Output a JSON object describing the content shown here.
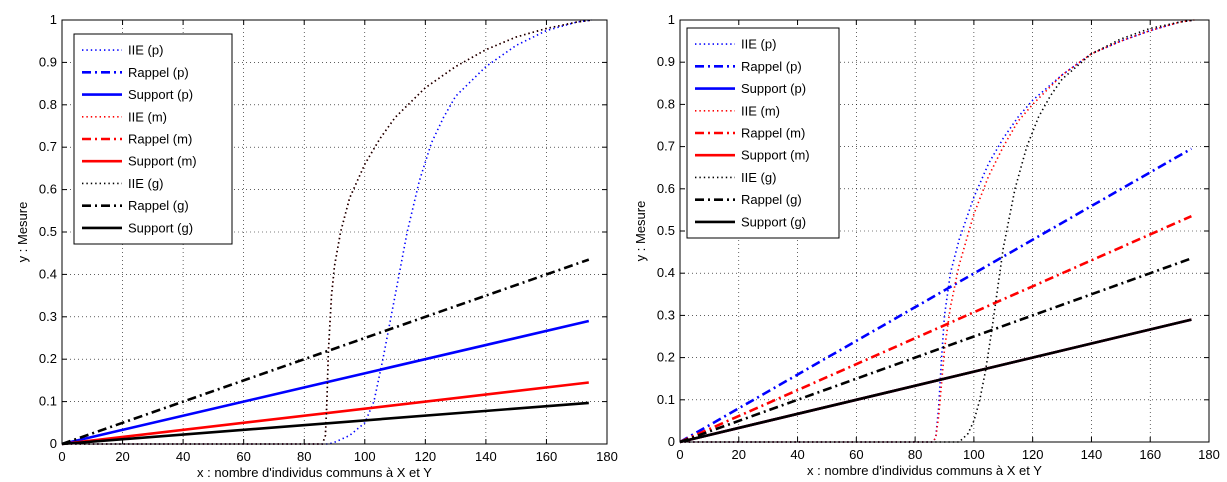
{
  "chart_data": [
    {
      "type": "line",
      "title": "",
      "xlabel": "x : nombre d'individus communs à X et Y",
      "ylabel": "y : Mesure",
      "xlim": [
        0,
        180
      ],
      "ylim": [
        0,
        1
      ],
      "xticks": [
        0,
        20,
        40,
        60,
        80,
        100,
        120,
        140,
        160,
        180
      ],
      "yticks": [
        0,
        0.1,
        0.2,
        0.3,
        0.4,
        0.5,
        0.6,
        0.7,
        0.8,
        0.9,
        1
      ],
      "grid": true,
      "legend_position": "top-left",
      "series": [
        {
          "name": "IIE (p)",
          "color": "#0000ff",
          "style": "dotted",
          "x": [
            0,
            86,
            88,
            90,
            95,
            100,
            103,
            106,
            110,
            114,
            118,
            122,
            126,
            130,
            140,
            150,
            160,
            170,
            175
          ],
          "y": [
            0,
            0,
            0,
            0.004,
            0.02,
            0.05,
            0.1,
            0.2,
            0.35,
            0.5,
            0.62,
            0.71,
            0.77,
            0.82,
            0.89,
            0.94,
            0.975,
            0.995,
            1
          ]
        },
        {
          "name": "Rappel (p)",
          "color": "#0000ff",
          "style": "dashdot",
          "x": [
            0,
            174
          ],
          "y": [
            0,
            0.0
          ]
        },
        {
          "name": "Support (p)",
          "color": "#0000ff",
          "style": "solid",
          "x": [
            0,
            174
          ],
          "y": [
            0,
            0.29
          ]
        },
        {
          "name": "IIE (m)",
          "color": "#ff0000",
          "style": "dotted",
          "x": [
            0,
            86,
            87,
            87.5,
            88,
            89,
            90,
            92,
            95,
            100,
            105,
            110,
            120,
            130,
            140,
            150,
            160,
            170,
            175
          ],
          "y": [
            0,
            0,
            0.02,
            0.1,
            0.22,
            0.35,
            0.42,
            0.5,
            0.58,
            0.66,
            0.72,
            0.77,
            0.84,
            0.89,
            0.93,
            0.96,
            0.98,
            0.995,
            1
          ]
        },
        {
          "name": "Rappel (m)",
          "color": "#ff0000",
          "style": "dashdot",
          "x": [
            0,
            174
          ],
          "y": [
            0,
            0.0
          ]
        },
        {
          "name": "Support (m)",
          "color": "#ff0000",
          "style": "solid",
          "x": [
            0,
            174
          ],
          "y": [
            0,
            0.145
          ]
        },
        {
          "name": "IIE (g)",
          "color": "#000000",
          "style": "dotted",
          "x": [
            0,
            86,
            87,
            87.5,
            88,
            89,
            90,
            92,
            95,
            100,
            105,
            110,
            120,
            130,
            140,
            150,
            160,
            170,
            175
          ],
          "y": [
            0,
            0,
            0.02,
            0.1,
            0.22,
            0.35,
            0.42,
            0.5,
            0.58,
            0.66,
            0.72,
            0.77,
            0.84,
            0.89,
            0.93,
            0.96,
            0.98,
            0.995,
            1
          ]
        },
        {
          "name": "Rappel (g)",
          "color": "#000000",
          "style": "dashdot",
          "x": [
            0,
            174
          ],
          "y": [
            0,
            0.435
          ]
        },
        {
          "name": "Support (g)",
          "color": "#000000",
          "style": "solid",
          "x": [
            0,
            174
          ],
          "y": [
            0,
            0.097
          ]
        }
      ]
    },
    {
      "type": "line",
      "title": "",
      "xlabel": "x : nombre d'individus communs à X et Y",
      "ylabel": "y : Mesure",
      "xlim": [
        0,
        180
      ],
      "ylim": [
        0,
        1
      ],
      "xticks": [
        0,
        20,
        40,
        60,
        80,
        100,
        120,
        140,
        160,
        180
      ],
      "yticks": [
        0,
        0.1,
        0.2,
        0.3,
        0.4,
        0.5,
        0.6,
        0.7,
        0.8,
        0.9,
        1
      ],
      "grid": true,
      "legend_position": "top-left",
      "series": [
        {
          "name": "IIE (p)",
          "color": "#0000ff",
          "style": "dotted",
          "x": [
            0,
            86,
            87,
            88,
            89,
            90,
            92,
            95,
            100,
            105,
            110,
            115,
            120,
            130,
            140,
            150,
            160,
            170,
            175
          ],
          "y": [
            0,
            0,
            0.01,
            0.08,
            0.2,
            0.3,
            0.4,
            0.48,
            0.58,
            0.66,
            0.72,
            0.77,
            0.81,
            0.87,
            0.92,
            0.95,
            0.975,
            0.995,
            1
          ]
        },
        {
          "name": "Rappel (p)",
          "color": "#0000ff",
          "style": "dashdot",
          "x": [
            0,
            174
          ],
          "y": [
            0,
            0.695
          ]
        },
        {
          "name": "Support (p)",
          "color": "#0000ff",
          "style": "solid",
          "x": [
            0,
            174
          ],
          "y": [
            0,
            0.29
          ]
        },
        {
          "name": "IIE (m)",
          "color": "#ff0000",
          "style": "dotted",
          "x": [
            0,
            86,
            87,
            88,
            89,
            90,
            92,
            95,
            100,
            105,
            110,
            115,
            120,
            130,
            140,
            150,
            160,
            170,
            175
          ],
          "y": [
            0,
            0,
            0.01,
            0.06,
            0.14,
            0.22,
            0.32,
            0.42,
            0.54,
            0.63,
            0.7,
            0.76,
            0.8,
            0.87,
            0.92,
            0.95,
            0.975,
            0.995,
            1
          ]
        },
        {
          "name": "Rappel (m)",
          "color": "#ff0000",
          "style": "dashdot",
          "x": [
            0,
            174
          ],
          "y": [
            0,
            0.535
          ]
        },
        {
          "name": "Support (m)",
          "color": "#ff0000",
          "style": "solid",
          "x": [
            0,
            174
          ],
          "y": [
            0,
            0.29
          ]
        },
        {
          "name": "IIE (g)",
          "color": "#000000",
          "style": "dotted",
          "x": [
            0,
            95,
            98,
            100,
            102,
            104,
            106,
            108,
            110,
            114,
            118,
            122,
            126,
            130,
            140,
            150,
            160,
            170,
            175
          ],
          "y": [
            0,
            0,
            0.02,
            0.05,
            0.1,
            0.17,
            0.26,
            0.36,
            0.46,
            0.6,
            0.7,
            0.77,
            0.82,
            0.86,
            0.92,
            0.955,
            0.98,
            0.995,
            1
          ]
        },
        {
          "name": "Rappel (g)",
          "color": "#000000",
          "style": "dashdot",
          "x": [
            0,
            174
          ],
          "y": [
            0,
            0.435
          ]
        },
        {
          "name": "Support (g)",
          "color": "#000000",
          "style": "solid",
          "x": [
            0,
            174
          ],
          "y": [
            0,
            0.29
          ]
        }
      ]
    }
  ]
}
